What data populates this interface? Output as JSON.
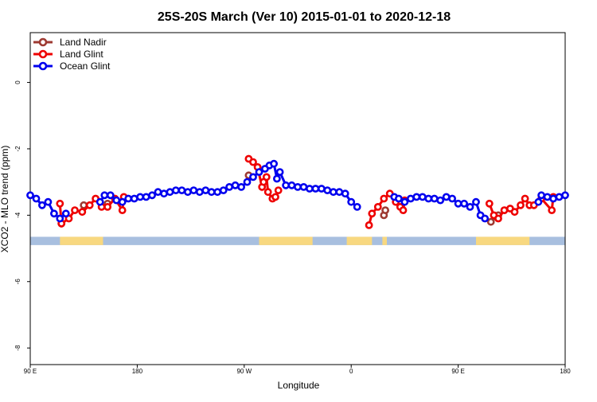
{
  "chart_data": {
    "type": "line",
    "title": "25S-20S March (Ver 10)   2015-01-01 to 2020-12-18",
    "xlabel": "Longitude",
    "ylabel": "XCO2 - MLO trend (ppm)",
    "xlim": [
      90,
      450
    ],
    "ylim": [
      -8.5,
      1.5
    ],
    "x_ticks": [
      {
        "value": 90,
        "label": "90 E"
      },
      {
        "value": 162,
        "label": "180"
      },
      {
        "value": 234,
        "label": "90 W"
      },
      {
        "value": 306,
        "label": "0"
      },
      {
        "value": 378,
        "label": "90 E"
      },
      {
        "value": 450,
        "label": "180"
      }
    ],
    "y_ticks": [
      {
        "value": 0,
        "label": "0"
      },
      {
        "value": -2,
        "label": "-2"
      },
      {
        "value": -4,
        "label": "-4"
      },
      {
        "value": -6,
        "label": "-6"
      },
      {
        "value": -8,
        "label": "-8"
      }
    ],
    "grid": false,
    "legend": {
      "position": "top-left"
    },
    "land_mask_band": {
      "y_range": [
        -4.9,
        -4.65
      ],
      "ocean_color": "#a8bfdf",
      "land_color": "#f8d880",
      "land_segments": [
        [
          110,
          139
        ],
        [
          244,
          280
        ],
        [
          303,
          320
        ],
        [
          327,
          330
        ],
        [
          390,
          426
        ]
      ]
    },
    "series": [
      {
        "name": "Land Nadir",
        "color": "#9e3a32",
        "points": [
          [
            111,
            -4.25
          ],
          [
            126,
            -3.7
          ],
          [
            142,
            -3.65
          ],
          [
            237,
            -2.8
          ],
          [
            400,
            -4.2
          ],
          [
            405,
            -4.0
          ],
          [
            328,
            -4.0
          ],
          [
            329,
            -3.85
          ]
        ]
      },
      {
        "name": "Land Glint",
        "color": "#ee0000",
        "points": [
          [
            110,
            -3.65
          ],
          [
            111,
            -4.25
          ],
          [
            116,
            -4.1
          ],
          [
            120,
            -3.85
          ],
          [
            125,
            -3.9
          ],
          [
            130,
            -3.7
          ],
          [
            134,
            -3.5
          ],
          [
            138,
            -3.75
          ],
          [
            142,
            -3.75
          ],
          [
            147,
            -3.5
          ],
          [
            152,
            -3.85
          ],
          [
            153,
            -3.45
          ],
          [
            237,
            -2.3
          ],
          [
            240,
            -2.4
          ],
          [
            243,
            -2.55
          ],
          [
            247,
            -3.0
          ],
          [
            246,
            -3.15
          ],
          [
            249,
            -2.85
          ],
          [
            250,
            -3.3
          ],
          [
            253,
            -3.5
          ],
          [
            255,
            -3.45
          ],
          [
            257,
            -3.25
          ],
          [
            318,
            -4.3
          ],
          [
            320,
            -3.95
          ],
          [
            324,
            -3.75
          ],
          [
            328,
            -3.5
          ],
          [
            332,
            -3.35
          ],
          [
            336,
            -3.6
          ],
          [
            339,
            -3.75
          ],
          [
            341,
            -3.85
          ],
          [
            342,
            -3.55
          ],
          [
            399,
            -3.65
          ],
          [
            402,
            -4.0
          ],
          [
            405,
            -4.1
          ],
          [
            409,
            -3.85
          ],
          [
            413,
            -3.8
          ],
          [
            416,
            -3.9
          ],
          [
            420,
            -3.7
          ],
          [
            423,
            -3.5
          ],
          [
            426,
            -3.7
          ],
          [
            429,
            -3.7
          ],
          [
            434,
            -3.5
          ],
          [
            441,
            -3.85
          ],
          [
            442,
            -3.45
          ]
        ]
      },
      {
        "name": "Ocean Glint",
        "color": "#0000ee",
        "points": [
          [
            90,
            -3.4
          ],
          [
            94,
            -3.5
          ],
          [
            98,
            -3.7
          ],
          [
            102,
            -3.6
          ],
          [
            106,
            -3.95
          ],
          [
            110,
            -4.1
          ],
          [
            114,
            -3.95
          ],
          [
            137,
            -3.6
          ],
          [
            140,
            -3.4
          ],
          [
            144,
            -3.4
          ],
          [
            148,
            -3.55
          ],
          [
            152,
            -3.6
          ],
          [
            156,
            -3.5
          ],
          [
            160,
            -3.5
          ],
          [
            164,
            -3.45
          ],
          [
            168,
            -3.45
          ],
          [
            172,
            -3.4
          ],
          [
            176,
            -3.3
          ],
          [
            180,
            -3.35
          ],
          [
            184,
            -3.3
          ],
          [
            188,
            -3.25
          ],
          [
            192,
            -3.25
          ],
          [
            196,
            -3.3
          ],
          [
            200,
            -3.25
          ],
          [
            204,
            -3.3
          ],
          [
            208,
            -3.25
          ],
          [
            212,
            -3.3
          ],
          [
            216,
            -3.3
          ],
          [
            220,
            -3.25
          ],
          [
            224,
            -3.15
          ],
          [
            228,
            -3.1
          ],
          [
            232,
            -3.15
          ],
          [
            236,
            -3.0
          ],
          [
            240,
            -2.85
          ],
          [
            244,
            -2.7
          ],
          [
            248,
            -2.6
          ],
          [
            251,
            -2.5
          ],
          [
            254,
            -2.45
          ],
          [
            256,
            -2.9
          ],
          [
            258,
            -2.7
          ],
          [
            262,
            -3.1
          ],
          [
            266,
            -3.1
          ],
          [
            270,
            -3.15
          ],
          [
            274,
            -3.15
          ],
          [
            278,
            -3.2
          ],
          [
            282,
            -3.2
          ],
          [
            286,
            -3.2
          ],
          [
            290,
            -3.25
          ],
          [
            294,
            -3.3
          ],
          [
            298,
            -3.3
          ],
          [
            302,
            -3.35
          ],
          [
            306,
            -3.6
          ],
          [
            310,
            -3.75
          ],
          [
            335,
            -3.45
          ],
          [
            338,
            -3.5
          ],
          [
            342,
            -3.6
          ],
          [
            346,
            -3.5
          ],
          [
            350,
            -3.45
          ],
          [
            354,
            -3.45
          ],
          [
            358,
            -3.5
          ],
          [
            362,
            -3.5
          ],
          [
            366,
            -3.55
          ],
          [
            370,
            -3.45
          ],
          [
            374,
            -3.5
          ],
          [
            378,
            -3.65
          ],
          [
            382,
            -3.65
          ],
          [
            386,
            -3.75
          ],
          [
            390,
            -3.6
          ],
          [
            393,
            -4.0
          ],
          [
            396,
            -4.1
          ],
          [
            432,
            -3.6
          ],
          [
            434,
            -3.4
          ],
          [
            438,
            -3.45
          ],
          [
            442,
            -3.5
          ],
          [
            446,
            -3.45
          ],
          [
            450,
            -3.4
          ]
        ]
      }
    ]
  }
}
